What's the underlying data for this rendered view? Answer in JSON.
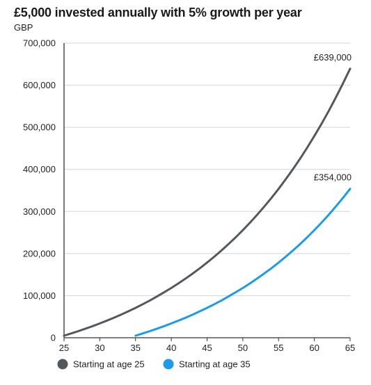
{
  "chart_data": {
    "type": "line",
    "title": "£5,000 invested annually with 5% growth per year",
    "subtitle": "GBP",
    "xlabel": "",
    "ylabel": "",
    "xlim": [
      25,
      65
    ],
    "ylim": [
      0,
      700000
    ],
    "x_ticks": [
      25,
      30,
      35,
      40,
      45,
      50,
      55,
      60,
      65
    ],
    "x_tick_labels": [
      "25",
      "30",
      "35",
      "40",
      "45",
      "50",
      "55",
      "60",
      "65"
    ],
    "y_ticks": [
      0,
      100000,
      200000,
      300000,
      400000,
      500000,
      600000,
      700000
    ],
    "y_tick_labels": [
      "0",
      "100,000",
      "200,000",
      "300,000",
      "400,000",
      "500,000",
      "600,000",
      "700,000"
    ],
    "grid": "horizontal",
    "legend_position": "bottom-left",
    "series": [
      {
        "name": "Starting at age 25",
        "color": "#55585b",
        "end_label": "£639,000",
        "points": [
          [
            25,
            5000
          ],
          [
            26,
            10250
          ],
          [
            27,
            15760
          ],
          [
            28,
            21550
          ],
          [
            29,
            27630
          ],
          [
            30,
            34010
          ],
          [
            31,
            40710
          ],
          [
            32,
            47750
          ],
          [
            33,
            55130
          ],
          [
            34,
            62890
          ],
          [
            35,
            71030
          ],
          [
            36,
            79580
          ],
          [
            37,
            88560
          ],
          [
            38,
            97990
          ],
          [
            39,
            107890
          ],
          [
            40,
            118290
          ],
          [
            41,
            129200
          ],
          [
            42,
            140660
          ],
          [
            43,
            152700
          ],
          [
            44,
            165330
          ],
          [
            45,
            178600
          ],
          [
            46,
            192530
          ],
          [
            47,
            207160
          ],
          [
            48,
            222510
          ],
          [
            49,
            238640
          ],
          [
            50,
            255570
          ],
          [
            51,
            273350
          ],
          [
            52,
            292010
          ],
          [
            53,
            311620
          ],
          [
            54,
            332200
          ],
          [
            55,
            353810
          ],
          [
            56,
            376500
          ],
          [
            57,
            400330
          ],
          [
            58,
            425340
          ],
          [
            59,
            451610
          ],
          [
            60,
            479190
          ],
          [
            61,
            508150
          ],
          [
            62,
            538560
          ],
          [
            63,
            570490
          ],
          [
            64,
            604010
          ],
          [
            65,
            639210
          ]
        ]
      },
      {
        "name": "Starting at age 35",
        "color": "#1c9be8",
        "end_label": "£354,000",
        "points": [
          [
            35,
            5000
          ],
          [
            36,
            10250
          ],
          [
            37,
            15760
          ],
          [
            38,
            21550
          ],
          [
            39,
            27630
          ],
          [
            40,
            34010
          ],
          [
            41,
            40710
          ],
          [
            42,
            47750
          ],
          [
            43,
            55130
          ],
          [
            44,
            62890
          ],
          [
            45,
            71030
          ],
          [
            46,
            79580
          ],
          [
            47,
            88560
          ],
          [
            48,
            97990
          ],
          [
            49,
            107890
          ],
          [
            50,
            118290
          ],
          [
            51,
            129200
          ],
          [
            52,
            140660
          ],
          [
            53,
            152700
          ],
          [
            54,
            165330
          ],
          [
            55,
            178600
          ],
          [
            56,
            192530
          ],
          [
            57,
            207160
          ],
          [
            58,
            222510
          ],
          [
            59,
            238640
          ],
          [
            60,
            255570
          ],
          [
            61,
            273350
          ],
          [
            62,
            292010
          ],
          [
            63,
            311620
          ],
          [
            64,
            332200
          ],
          [
            65,
            353810
          ]
        ]
      }
    ]
  }
}
